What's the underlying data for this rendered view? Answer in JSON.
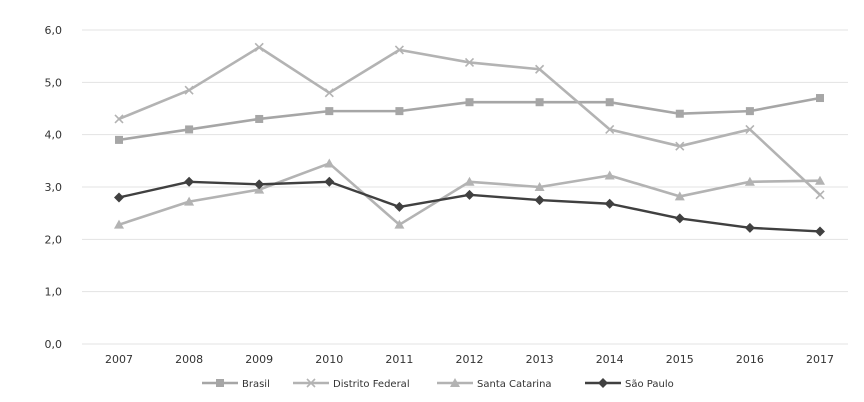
{
  "chart_data": {
    "type": "line",
    "title": "",
    "xlabel": "",
    "ylabel": "",
    "categories": [
      "2007",
      "2008",
      "2009",
      "2010",
      "2011",
      "2012",
      "2013",
      "2014",
      "2015",
      "2016",
      "2017"
    ],
    "yticks": [
      "0,0",
      "1,0",
      "2,0",
      "3,0",
      "4,0",
      "5,0",
      "6,0"
    ],
    "ylim": [
      0,
      6
    ],
    "grid": true,
    "legend_position": "bottom",
    "series": [
      {
        "name": "Brasil",
        "marker": "square",
        "color": "#a6a6a6",
        "values": [
          3.9,
          4.1,
          4.3,
          4.45,
          4.45,
          4.62,
          4.62,
          4.62,
          4.4,
          4.45,
          4.7
        ]
      },
      {
        "name": "Distrito Federal",
        "marker": "cross",
        "color": "#b3b3b3",
        "values": [
          4.3,
          4.85,
          5.67,
          4.8,
          5.62,
          5.38,
          5.25,
          4.1,
          3.78,
          4.1,
          2.85
        ]
      },
      {
        "name": "Santa Catarina",
        "marker": "triangle",
        "color": "#b3b3b3",
        "values": [
          2.28,
          2.72,
          2.95,
          3.45,
          2.28,
          3.1,
          3.0,
          3.22,
          2.82,
          3.1,
          3.12
        ]
      },
      {
        "name": "São Paulo",
        "marker": "diamond",
        "color": "#404040",
        "values": [
          2.8,
          3.1,
          3.05,
          3.1,
          2.62,
          2.85,
          2.75,
          2.68,
          2.4,
          2.22,
          2.15
        ]
      }
    ]
  }
}
